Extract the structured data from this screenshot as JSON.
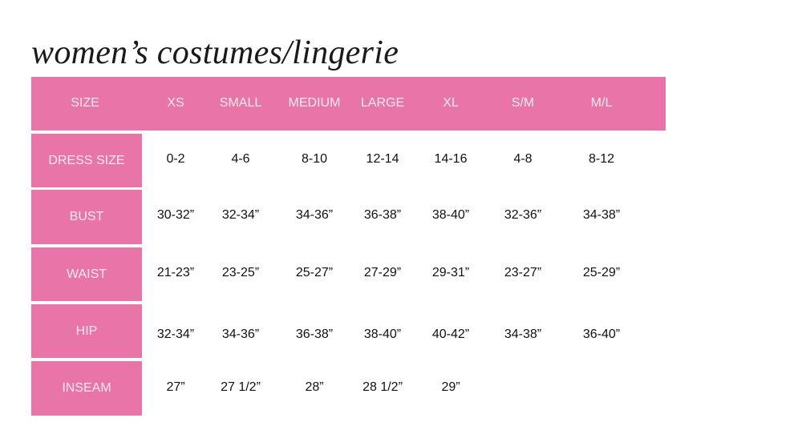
{
  "title": "women’s costumes/lingerie",
  "colors": {
    "accent": "#e974a8",
    "header_text": "#fbe9f1",
    "body_text": "#111111"
  },
  "table": {
    "header_label": "SIZE",
    "columns": [
      "XS",
      "SMALL",
      "MEDIUM",
      "LARGE",
      "XL",
      "S/M",
      "M/L"
    ],
    "rows": [
      {
        "label": "DRESS SIZE",
        "values": [
          "0-2",
          "4-6",
          "8-10",
          "12-14",
          "14-16",
          "4-8",
          "8-12"
        ]
      },
      {
        "label": "BUST",
        "values": [
          "30-32”",
          "32-34”",
          "34-36”",
          "36-38”",
          "38-40”",
          "32-36”",
          "34-38”"
        ]
      },
      {
        "label": "WAIST",
        "values": [
          "21-23”",
          "23-25”",
          "25-27”",
          "27-29”",
          "29-31”",
          "23-27”",
          "25-29”"
        ]
      },
      {
        "label": "HIP",
        "values": [
          "32-34”",
          "34-36”",
          "36-38”",
          "38-40”",
          "40-42”",
          "34-38”",
          "36-40”"
        ]
      },
      {
        "label": "INSEAM",
        "values": [
          "27”",
          "27 1/2”",
          "28”",
          "28 1/2”",
          "29”"
        ]
      }
    ]
  }
}
